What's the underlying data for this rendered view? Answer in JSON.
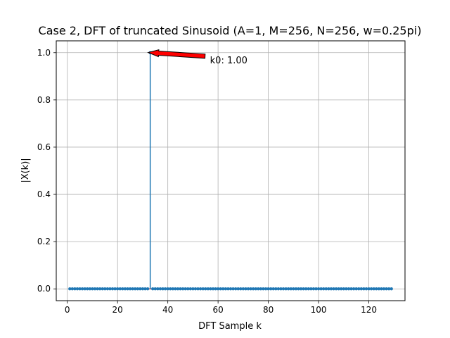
{
  "chart_data": {
    "type": "stem",
    "title": "Case 2, DFT of truncated Sinusoid (A=1, M=256, N=256, w=0.25pi)",
    "xlabel": "DFT Sample k",
    "ylabel": "|X(k)|",
    "xlim": [
      -4.4,
      134.4
    ],
    "ylim": [
      -0.05,
      1.05
    ],
    "xticks": [
      0,
      20,
      40,
      60,
      80,
      100,
      120
    ],
    "xtick_labels": [
      "0",
      "20",
      "40",
      "60",
      "80",
      "100",
      "120"
    ],
    "yticks": [
      0.0,
      0.2,
      0.4,
      0.6,
      0.8,
      1.0
    ],
    "ytick_labels": [
      "0.0",
      "0.2",
      "0.4",
      "0.6",
      "0.8",
      "1.0"
    ],
    "grid": true,
    "k_start": 1,
    "k_end": 129,
    "peak_k": 33,
    "peak_value": 1.0,
    "baseline_value": 0.0,
    "stem_color": "#1f77b4",
    "baseline_color": "#d62728",
    "annotation": {
      "text": "k0: 1.00",
      "x": 33,
      "y": 1.0,
      "arrow_color": "#ff0000"
    }
  }
}
